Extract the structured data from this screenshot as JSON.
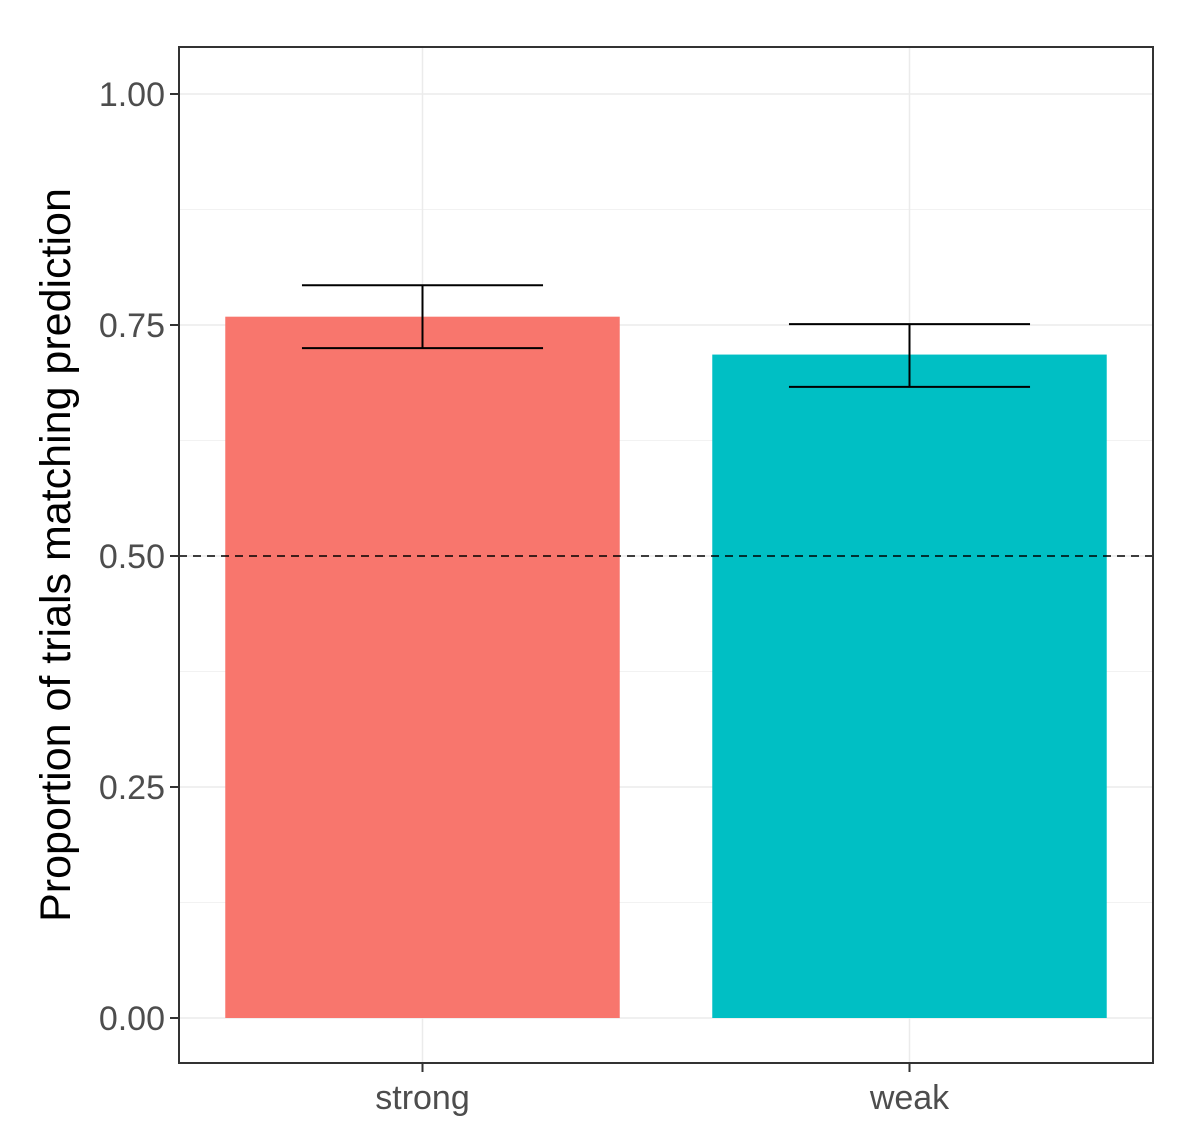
{
  "chart_data": {
    "type": "bar",
    "title": "",
    "xlabel": "",
    "ylabel": "Proportion of trials matching prediction",
    "categories": [
      "strong",
      "weak"
    ],
    "values": [
      0.759,
      0.718
    ],
    "error_bars": [
      {
        "low": 0.725,
        "high": 0.793
      },
      {
        "low": 0.683,
        "high": 0.751
      }
    ],
    "colors": [
      "#F8766D",
      "#00BFC4"
    ],
    "ylim": [
      -0.05,
      1.05
    ],
    "yticks": [
      0,
      0.25,
      0.5,
      0.75,
      1
    ],
    "ytick_labels": [
      "0.00",
      "0.25",
      "0.50",
      "0.75",
      "1.00"
    ],
    "reference_line": {
      "y": 0.5,
      "style": "dashed"
    },
    "grid": true,
    "legend": "none"
  }
}
